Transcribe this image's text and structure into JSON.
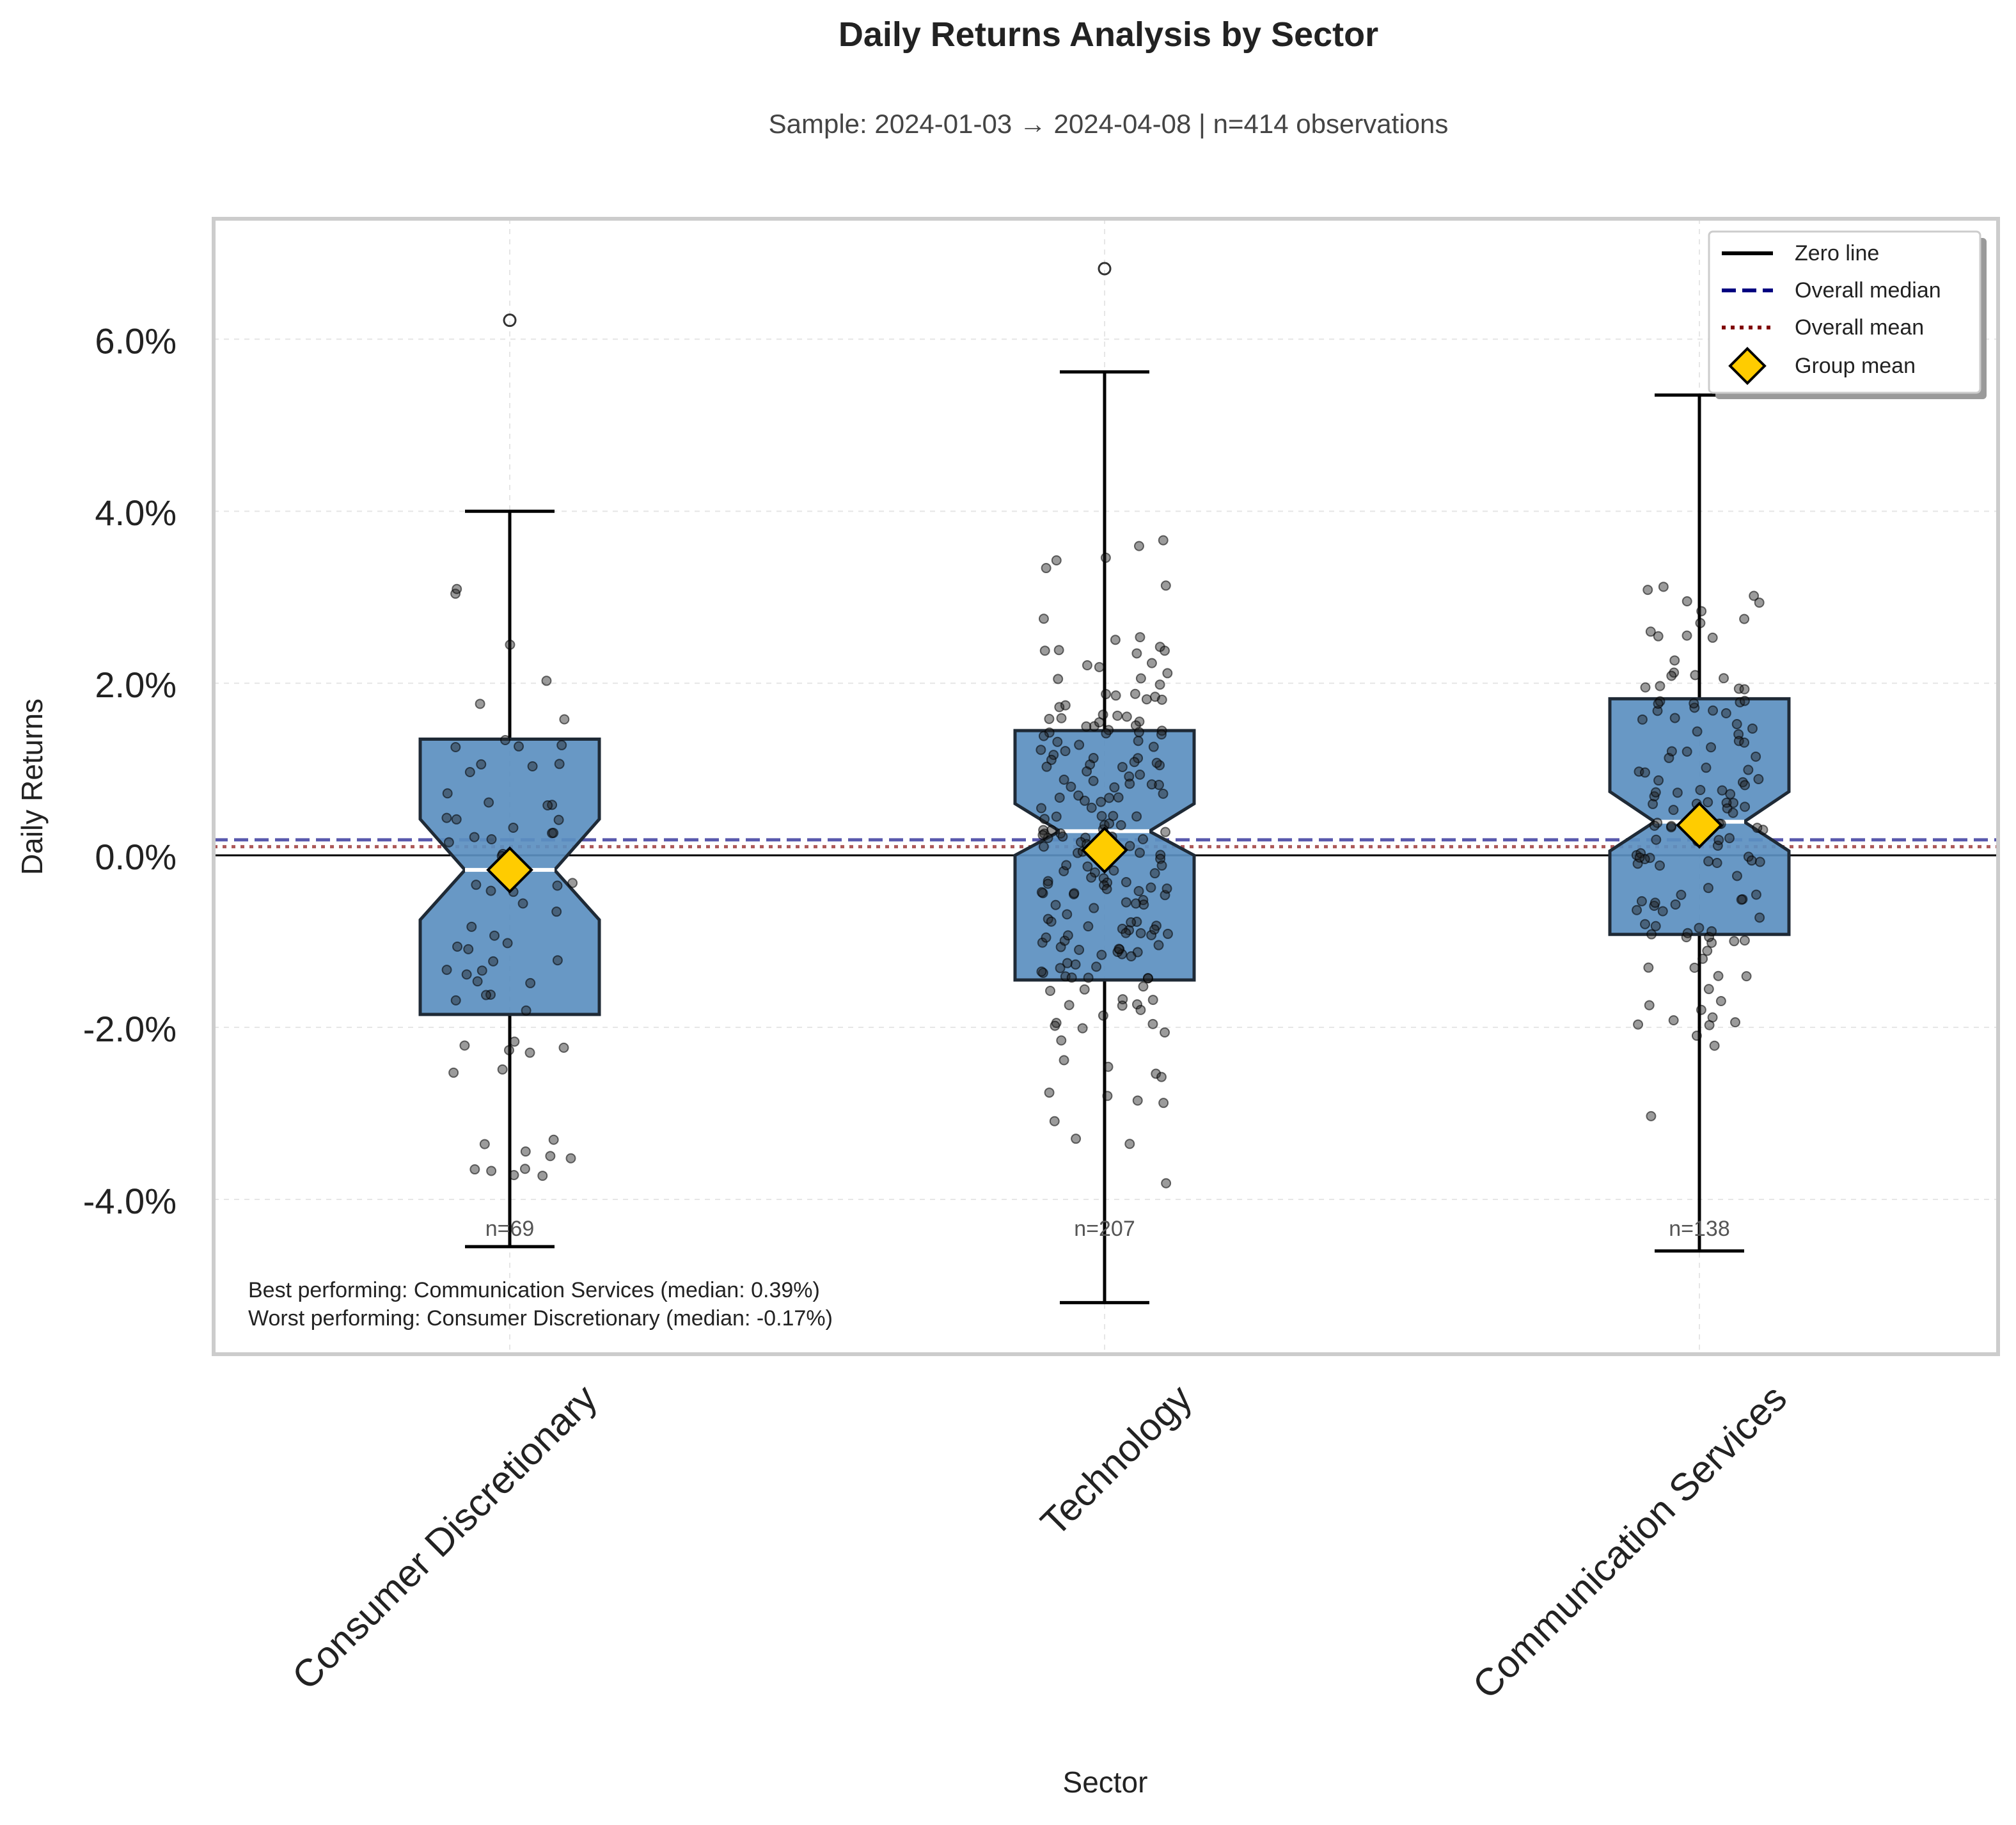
{
  "chart_data": {
    "type": "box",
    "title": "Daily Returns Analysis by Sector",
    "subtitle": "Sample: 2024-01-03 → 2024-04-08 | n=414 observations",
    "xlabel": "Sector",
    "ylabel": "Daily Returns",
    "ylim": [
      -5.8,
      7.4
    ],
    "yticks": [
      -4,
      -2,
      0,
      2,
      4,
      6
    ],
    "ytick_labels": [
      "-4.0%",
      "-2.0%",
      "0.0%",
      "2.0%",
      "4.0%",
      "6.0%"
    ],
    "grid": true,
    "legend_position": "top-right",
    "categories": [
      "Consumer Discretionary",
      "Technology",
      "Communication Services"
    ],
    "boxes": [
      {
        "name": "Consumer Discretionary",
        "whisker_low": -4.55,
        "q1": -1.85,
        "median": -0.17,
        "q3": 1.35,
        "whisker_high": 4.0,
        "notch_low": -0.75,
        "notch_high": 0.42,
        "mean": -0.17,
        "n_label": "n=69",
        "outliers": [
          6.22
        ]
      },
      {
        "name": "Technology",
        "whisker_low": -5.2,
        "q1": -1.45,
        "median": 0.28,
        "q3": 1.45,
        "whisker_high": 5.62,
        "notch_low": 0.0,
        "notch_high": 0.6,
        "mean": 0.06,
        "n_label": "n=207",
        "outliers": [
          6.82
        ]
      },
      {
        "name": "Communication Services",
        "whisker_low": -4.6,
        "q1": -0.92,
        "median": 0.39,
        "q3": 1.82,
        "whisker_high": 5.35,
        "notch_low": 0.05,
        "notch_high": 0.74,
        "mean": 0.35,
        "n_label": "n=138",
        "outliers": []
      }
    ],
    "overall_median": 0.18,
    "overall_mean": 0.1,
    "zero_line": 0,
    "legend": [
      "Zero line",
      "Overall median",
      "Overall mean",
      "Group mean"
    ],
    "annotations": [
      "Best performing: Communication Services (median: 0.39%)",
      "Worst performing: Consumer Discretionary (median: -0.17%)"
    ],
    "colors": {
      "box_fill": "#5b8fc0",
      "box_edge": "#1f2a36",
      "median_line": "#ffffff",
      "mean_marker": "#ffcc00",
      "overall_median": "#000080",
      "overall_mean": "#800000",
      "points": "#222222"
    }
  }
}
